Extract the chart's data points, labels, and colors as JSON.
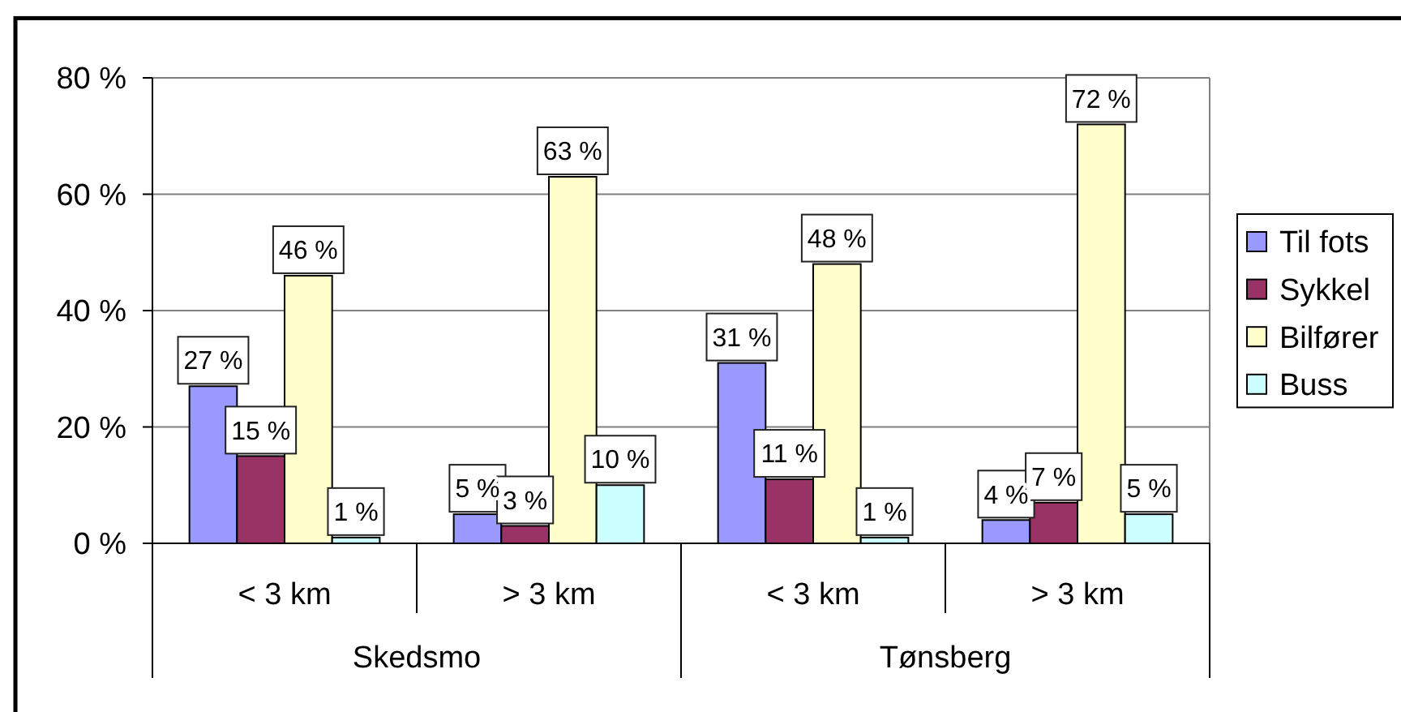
{
  "chart_data": {
    "type": "bar",
    "categories": [
      "< 3 km",
      "> 3 km",
      "< 3 km",
      "> 3 km"
    ],
    "annotations": [
      "Skedsmo",
      "Tønsberg"
    ],
    "series": [
      {
        "name": "Til fots",
        "color": "#9999ff",
        "values": [
          27,
          5,
          31,
          4
        ],
        "value_labels": [
          "27 %",
          "5 %",
          "31 %",
          "4 %"
        ]
      },
      {
        "name": "Sykkel",
        "color": "#993366",
        "values": [
          15,
          3,
          11,
          7
        ],
        "value_labels": [
          "15 %",
          "3 %",
          "11 %",
          "7 %"
        ]
      },
      {
        "name": "Bilfører",
        "color": "#ffffcc",
        "values": [
          46,
          63,
          48,
          72
        ],
        "value_labels": [
          "46 %",
          "63 %",
          "48 %",
          "72 %"
        ]
      },
      {
        "name": "Buss",
        "color": "#ccffff",
        "values": [
          1,
          10,
          1,
          5
        ],
        "value_labels": [
          "1 %",
          "10 %",
          "1 %",
          "5 %"
        ]
      }
    ],
    "ylim": [
      0,
      80
    ],
    "yticks": [
      {
        "value": 0,
        "label": "0 %"
      },
      {
        "value": 20,
        "label": "20 %"
      },
      {
        "value": 40,
        "label": "40 %"
      },
      {
        "value": 60,
        "label": "60 %"
      },
      {
        "value": 80,
        "label": "80 %"
      }
    ],
    "grid": "y",
    "legend": "right"
  }
}
